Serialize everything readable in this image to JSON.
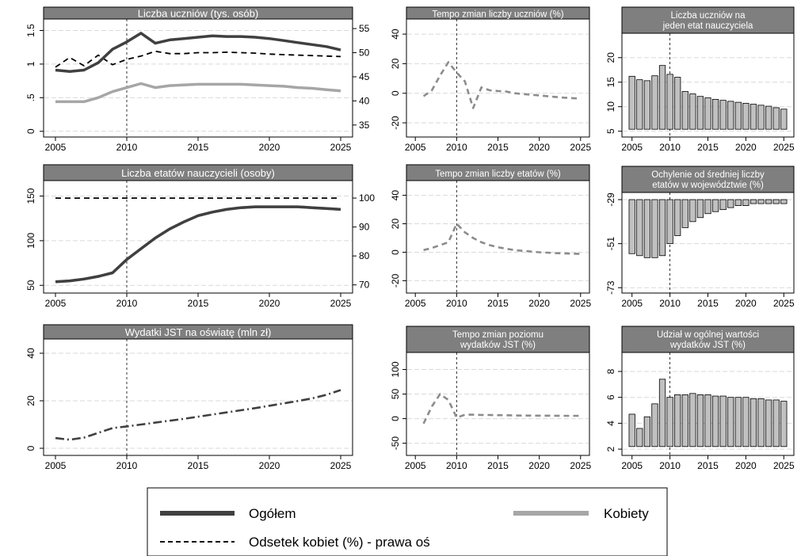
{
  "colors": {
    "ogolem": "#404040",
    "kobiety": "#a6a6a6",
    "odsetek": "#000000",
    "tempo": "#8c8c8c",
    "bar_fill": "#c0c0c0",
    "title_bg": "#7f7f7f",
    "grid": "#d9d9d9"
  },
  "legend": {
    "ogolem": "Ogółem",
    "kobiety": "Kobiety",
    "odsetek": "Odsetek kobiet (%) - prawa oś"
  },
  "chart_data": [
    {
      "id": "p1",
      "type": "line",
      "title": "Liczba uczniów (tys. osób)",
      "grid": true,
      "x_ticks": [
        2005,
        2010,
        2015,
        2020,
        2025
      ],
      "xlim": [
        2004.5,
        2025.5
      ],
      "ylim": [
        -0.05,
        1.6
      ],
      "y_ticks": [
        0,
        0.5,
        1,
        1.5
      ],
      "y_tick_labels": [
        "0",
        ".5",
        "1",
        "1.5"
      ],
      "y2lim": [
        33.0,
        56.0
      ],
      "y2_ticks": [
        35,
        40,
        45,
        50,
        55
      ],
      "vline": 2010,
      "x": [
        2005,
        2006,
        2007,
        2008,
        2009,
        2010,
        2011,
        2012,
        2013,
        2014,
        2015,
        2016,
        2017,
        2018,
        2019,
        2020,
        2021,
        2022,
        2023,
        2024,
        2025
      ],
      "series": [
        {
          "name": "Ogółem",
          "color_key": "ogolem",
          "style": "solid",
          "width": 3.5,
          "axis": "left",
          "values": [
            0.91,
            0.89,
            0.91,
            1.02,
            1.22,
            1.33,
            1.46,
            1.31,
            1.36,
            1.38,
            1.4,
            1.42,
            1.41,
            1.41,
            1.4,
            1.38,
            1.35,
            1.32,
            1.29,
            1.26,
            1.21
          ]
        },
        {
          "name": "Kobiety",
          "color_key": "kobiety",
          "style": "solid",
          "width": 3.5,
          "axis": "left",
          "values": [
            0.44,
            0.44,
            0.44,
            0.5,
            0.59,
            0.65,
            0.71,
            0.65,
            0.68,
            0.69,
            0.7,
            0.7,
            0.7,
            0.7,
            0.69,
            0.68,
            0.67,
            0.65,
            0.64,
            0.62,
            0.6
          ]
        },
        {
          "name": "Odsetek kobiet (%) - prawa oś",
          "color_key": "odsetek",
          "style": "dash",
          "width": 1.8,
          "axis": "right",
          "values": [
            47.0,
            49.0,
            47.3,
            49.5,
            47.5,
            48.6,
            49.3,
            50.3,
            49.8,
            49.8,
            50.0,
            50.0,
            50.1,
            50.0,
            49.9,
            49.7,
            49.6,
            49.5,
            49.4,
            49.3,
            49.2
          ]
        }
      ]
    },
    {
      "id": "p2",
      "type": "line",
      "title": "Tempo zmian liczby uczniów (%)",
      "grid": true,
      "x_ticks": [
        2005,
        2010,
        2015,
        2020,
        2025
      ],
      "xlim": [
        2004.5,
        2025.5
      ],
      "ylim": [
        -28,
        47
      ],
      "y_ticks": [
        -20,
        0,
        20,
        40
      ],
      "y_tick_labels": [
        "-20",
        "0",
        "20",
        "40"
      ],
      "y_labels_rotated": true,
      "vline": 2010,
      "x": [
        2006,
        2007,
        2008,
        2009,
        2010,
        2011,
        2012,
        2013,
        2014,
        2015,
        2016,
        2017,
        2018,
        2019,
        2020,
        2021,
        2022,
        2023,
        2024,
        2025
      ],
      "series": [
        {
          "name": "",
          "color_key": "tempo",
          "style": "dash",
          "width": 2.6,
          "axis": "left",
          "values": [
            -2,
            2,
            12,
            21,
            14,
            8,
            -10,
            4,
            2,
            1.5,
            1.2,
            0,
            -0.5,
            -1,
            -1.5,
            -2,
            -2.5,
            -3,
            -3.3,
            -3.6
          ]
        }
      ]
    },
    {
      "id": "p3",
      "type": "bar",
      "title": "Liczba uczniów na\njeden etat nauczyciela",
      "grid": true,
      "x_ticks": [
        2005,
        2010,
        2015,
        2020,
        2025
      ],
      "xlim": [
        2004.3,
        2025.7
      ],
      "ylim": [
        4.3,
        24.0
      ],
      "y_ticks": [
        5,
        10,
        15,
        20
      ],
      "y_tick_labels": [
        "5",
        "10",
        "15",
        "20"
      ],
      "y_labels_rotated": true,
      "base": 5.4,
      "vline": 2010,
      "x": [
        2005,
        2006,
        2007,
        2008,
        2009,
        2010,
        2011,
        2012,
        2013,
        2014,
        2015,
        2016,
        2017,
        2018,
        2019,
        2020,
        2021,
        2022,
        2023,
        2024,
        2025
      ],
      "values": [
        16.2,
        15.5,
        15.3,
        16.3,
        18.4,
        16.6,
        16.0,
        13.1,
        12.6,
        12.1,
        11.8,
        11.5,
        11.3,
        11.1,
        10.9,
        10.7,
        10.5,
        10.3,
        10.1,
        9.8,
        9.5
      ]
    },
    {
      "id": "p4",
      "type": "line",
      "title": "Liczba etatów nauczycieli (osoby)",
      "grid": true,
      "x_ticks": [
        2005,
        2010,
        2015,
        2020,
        2025
      ],
      "xlim": [
        2004.5,
        2025.5
      ],
      "ylim": [
        44,
        162
      ],
      "y_ticks": [
        50,
        100,
        150
      ],
      "y_tick_labels": [
        "50",
        "100",
        "150"
      ],
      "y2lim": [
        68,
        104.4
      ],
      "y2_ticks": [
        70,
        80,
        90,
        100
      ],
      "vline": 2010,
      "x": [
        2005,
        2006,
        2007,
        2008,
        2009,
        2010,
        2011,
        2012,
        2013,
        2014,
        2015,
        2016,
        2017,
        2018,
        2019,
        2020,
        2021,
        2022,
        2023,
        2024,
        2025
      ],
      "series": [
        {
          "name": "Ogółem",
          "color_key": "ogolem",
          "style": "solid",
          "width": 3.5,
          "axis": "left",
          "values": [
            54,
            55,
            57,
            60,
            64,
            79,
            91,
            103,
            113,
            121,
            128,
            132,
            135,
            137,
            138,
            138,
            138,
            138,
            137,
            136,
            135
          ]
        },
        {
          "name": "Kobiety",
          "color_key": "kobiety",
          "style": "solid",
          "width": 3.5,
          "axis": "left",
          "values": [
            54,
            55,
            57,
            60,
            64,
            79,
            91,
            103,
            113,
            121,
            128,
            132,
            135,
            137,
            138,
            138,
            138,
            138,
            137,
            136,
            135
          ]
        },
        {
          "name": "Odsetek kobiet (%) - prawa oś",
          "color_key": "odsetek",
          "style": "dash",
          "width": 1.8,
          "axis": "right",
          "values": [
            100,
            100,
            100,
            100,
            100,
            100,
            100,
            100,
            100,
            100,
            100,
            100,
            100,
            100,
            100,
            100,
            100,
            100,
            100,
            100,
            100
          ]
        }
      ]
    },
    {
      "id": "p5",
      "type": "line",
      "title": "Tempo zmian liczby etatów (%)",
      "grid": true,
      "x_ticks": [
        2005,
        2010,
        2015,
        2020,
        2025
      ],
      "xlim": [
        2004.5,
        2025.5
      ],
      "ylim": [
        -27,
        47
      ],
      "y_ticks": [
        -20,
        0,
        20,
        40
      ],
      "y_tick_labels": [
        "-20",
        "0",
        "20",
        "40"
      ],
      "y_labels_rotated": true,
      "vline": 2010,
      "x": [
        2006,
        2007,
        2008,
        2009,
        2010,
        2011,
        2012,
        2013,
        2014,
        2015,
        2016,
        2017,
        2018,
        2019,
        2020,
        2021,
        2022,
        2023,
        2024,
        2025
      ],
      "series": [
        {
          "name": "",
          "color_key": "tempo",
          "style": "dash",
          "width": 2.6,
          "axis": "left",
          "values": [
            1.5,
            3,
            5,
            7,
            20,
            14,
            10,
            7,
            5,
            3.5,
            2.5,
            1.5,
            1,
            0.5,
            0,
            -0.3,
            -0.6,
            -0.8,
            -1,
            -1.2
          ]
        }
      ]
    },
    {
      "id": "p6",
      "type": "bar",
      "title": "Ochylenie od średniej liczby\netatów w województwie (%)",
      "grid": true,
      "x_ticks": [
        2005,
        2010,
        2015,
        2020,
        2025
      ],
      "xlim": [
        2004.3,
        2025.7
      ],
      "ylim": [
        -74.5,
        -27.8
      ],
      "y_ticks": [
        -73,
        -51,
        -29
      ],
      "y_tick_labels": [
        "-73",
        "-51",
        "-29"
      ],
      "y_labels_rotated": true,
      "base": -29,
      "vline": 2010,
      "x": [
        2005,
        2006,
        2007,
        2008,
        2009,
        2010,
        2011,
        2012,
        2013,
        2014,
        2015,
        2016,
        2017,
        2018,
        2019,
        2020,
        2021,
        2022,
        2023,
        2024,
        2025
      ],
      "values": [
        -56,
        -57,
        -58,
        -58,
        -57,
        -51,
        -47,
        -43,
        -40,
        -38,
        -36,
        -35,
        -34,
        -33,
        -32,
        -32,
        -31,
        -31,
        -31,
        -31,
        -31
      ]
    },
    {
      "id": "p7",
      "type": "line",
      "title": "Wydatki JST na oświatę (mln zł)",
      "grid": true,
      "x_ticks": [
        2005,
        2010,
        2015,
        2020,
        2025
      ],
      "xlim": [
        2004.5,
        2025.5
      ],
      "ylim": [
        -2,
        44
      ],
      "y_ticks": [
        0,
        20,
        40
      ],
      "y_tick_labels": [
        "0",
        "20",
        "40"
      ],
      "vline": 2010,
      "x": [
        2005,
        2006,
        2007,
        2008,
        2009,
        2010,
        2011,
        2012,
        2013,
        2014,
        2015,
        2016,
        2017,
        2018,
        2019,
        2020,
        2021,
        2022,
        2023,
        2024,
        2025
      ],
      "series": [
        {
          "name": "",
          "color_key": "ogolem",
          "style": "dashdot",
          "width": 2.6,
          "axis": "left",
          "values": [
            4.3,
            3.6,
            4.5,
            6.5,
            8.5,
            9.2,
            10,
            10.8,
            11.6,
            12.4,
            13.3,
            14.2,
            15.1,
            16,
            16.9,
            17.9,
            18.9,
            19.9,
            21,
            22.5,
            24.5
          ]
        }
      ]
    },
    {
      "id": "p8",
      "type": "line",
      "title": "Tempo zmian poziomu\nwydatków JST (%)",
      "grid": true,
      "x_ticks": [
        2005,
        2010,
        2015,
        2020,
        2025
      ],
      "xlim": [
        2004.5,
        2025.5
      ],
      "ylim": [
        -70,
        125
      ],
      "y_ticks": [
        -50,
        0,
        50,
        100
      ],
      "y_tick_labels": [
        "-50",
        "0",
        "50",
        "100"
      ],
      "y_labels_rotated": true,
      "vline": 2010,
      "x": [
        2006,
        2007,
        2008,
        2009,
        2010,
        2011,
        2012,
        2013,
        2014,
        2015,
        2016,
        2017,
        2018,
        2019,
        2020,
        2021,
        2022,
        2023,
        2024,
        2025
      ],
      "series": [
        {
          "name": "",
          "color_key": "tempo",
          "style": "dash",
          "width": 2.6,
          "axis": "left",
          "values": [
            -10,
            25,
            50,
            38,
            2,
            8,
            8,
            7.5,
            7.3,
            7,
            6.8,
            6.5,
            6.3,
            6.2,
            6,
            6,
            5.9,
            5.8,
            5.8,
            5.8
          ]
        }
      ]
    },
    {
      "id": "p9",
      "type": "bar",
      "title": "Udział w ogólnej wartości\nwydatków JST (%)",
      "grid": true,
      "x_ticks": [
        2005,
        2010,
        2015,
        2020,
        2025
      ],
      "xlim": [
        2004.3,
        2025.7
      ],
      "ylim": [
        1.7,
        9.1
      ],
      "y_ticks": [
        2,
        4,
        6,
        8
      ],
      "y_tick_labels": [
        "2",
        "4",
        "6",
        "8"
      ],
      "y_labels_rotated": true,
      "base": 2.2,
      "vline": 2010,
      "x": [
        2005,
        2006,
        2007,
        2008,
        2009,
        2010,
        2011,
        2012,
        2013,
        2014,
        2015,
        2016,
        2017,
        2018,
        2019,
        2020,
        2021,
        2022,
        2023,
        2024,
        2025
      ],
      "values": [
        4.7,
        3.6,
        4.5,
        5.5,
        7.4,
        6.0,
        6.2,
        6.2,
        6.3,
        6.2,
        6.2,
        6.1,
        6.1,
        6.0,
        6.0,
        6.0,
        5.9,
        5.9,
        5.8,
        5.8,
        5.7
      ]
    }
  ]
}
